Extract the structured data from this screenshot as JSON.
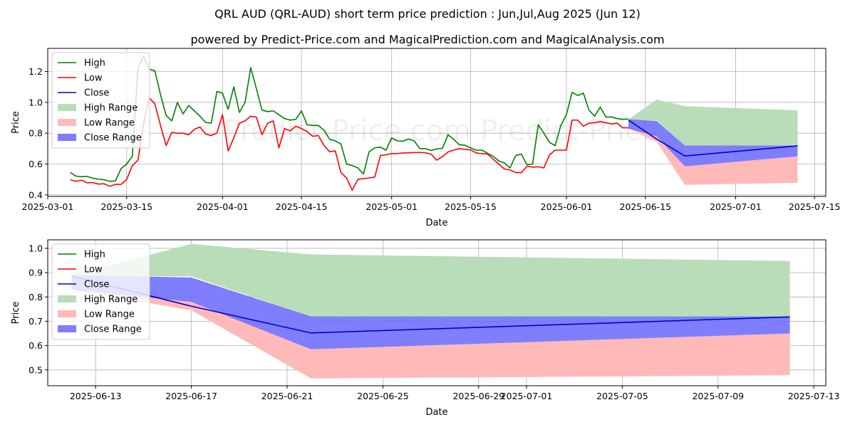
{
  "title": "QRL AUD (QRL-AUD) short term price prediction : Jun,Jul,Aug 2025 (Jun 12)",
  "subtitle": "powered by Predict-Price.com and MagicalPrediction.com and MagicalAnalysis.com",
  "watermark": "Predict-Price.com",
  "colors": {
    "high": "#008000",
    "low": "#ff0000",
    "close": "#0000cc",
    "high_range": "#b9dcb9",
    "low_range": "#ffb9b9",
    "close_range": "#7070ff"
  },
  "legend": [
    "High",
    "Low",
    "Close",
    "High Range",
    "Low Range",
    "Close Range"
  ],
  "chart_data": [
    {
      "type": "line",
      "name": "history-and-forecast",
      "xlabel": "Date",
      "ylabel": "Price",
      "xlim": [
        "2025-03-01",
        "2025-07-17"
      ],
      "ylim": [
        0.39,
        1.35
      ],
      "xticks": [
        "2025-03-01",
        "2025-03-15",
        "2025-04-01",
        "2025-04-15",
        "2025-05-01",
        "2025-05-15",
        "2025-06-01",
        "2025-06-15",
        "2025-07-01",
        "2025-07-15"
      ],
      "yticks": [
        0.4,
        0.6,
        0.8,
        1.0,
        1.2
      ],
      "grid": true,
      "legend_position": "top-left",
      "series": [
        {
          "name": "High",
          "x": [
            "2025-03-05",
            "2025-03-06",
            "2025-03-07",
            "2025-03-08",
            "2025-03-09",
            "2025-03-10",
            "2025-03-11",
            "2025-03-12",
            "2025-03-13",
            "2025-03-14",
            "2025-03-15",
            "2025-03-16",
            "2025-03-17",
            "2025-03-18",
            "2025-03-19",
            "2025-03-20",
            "2025-03-21",
            "2025-03-22",
            "2025-03-23",
            "2025-03-24",
            "2025-03-25",
            "2025-03-26",
            "2025-03-27",
            "2025-03-28",
            "2025-03-29",
            "2025-03-30",
            "2025-03-31",
            "2025-04-01",
            "2025-04-02",
            "2025-04-03",
            "2025-04-04",
            "2025-04-05",
            "2025-04-06",
            "2025-04-07",
            "2025-04-08",
            "2025-04-09",
            "2025-04-10",
            "2025-04-11",
            "2025-04-12",
            "2025-04-13",
            "2025-04-14",
            "2025-04-15",
            "2025-04-16",
            "2025-04-17",
            "2025-04-18",
            "2025-04-19",
            "2025-04-20",
            "2025-04-21",
            "2025-04-22",
            "2025-04-23",
            "2025-04-24",
            "2025-04-25",
            "2025-04-26",
            "2025-04-27",
            "2025-04-28",
            "2025-04-29",
            "2025-04-30",
            "2025-05-01",
            "2025-05-02",
            "2025-05-03",
            "2025-05-04",
            "2025-05-05",
            "2025-05-06",
            "2025-05-07",
            "2025-05-08",
            "2025-05-09",
            "2025-05-10",
            "2025-05-11",
            "2025-05-12",
            "2025-05-13",
            "2025-05-14",
            "2025-05-15",
            "2025-05-16",
            "2025-05-17",
            "2025-05-18",
            "2025-05-19",
            "2025-05-20",
            "2025-05-21",
            "2025-05-22",
            "2025-05-23",
            "2025-05-24",
            "2025-05-25",
            "2025-05-26",
            "2025-05-27",
            "2025-05-28",
            "2025-05-29",
            "2025-05-30",
            "2025-05-31",
            "2025-06-01",
            "2025-06-02",
            "2025-06-03",
            "2025-06-04",
            "2025-06-05",
            "2025-06-06",
            "2025-06-07",
            "2025-06-08",
            "2025-06-09",
            "2025-06-10",
            "2025-06-11",
            "2025-06-12"
          ],
          "values": [
            0.545,
            0.522,
            0.518,
            0.52,
            0.508,
            0.502,
            0.498,
            0.488,
            0.49,
            0.57,
            0.6,
            0.65,
            1.22,
            1.3,
            1.215,
            1.205,
            1.05,
            0.915,
            0.88,
            1.0,
            0.925,
            0.98,
            0.945,
            0.91,
            0.87,
            0.865,
            1.07,
            1.06,
            0.955,
            1.1,
            0.935,
            1.0,
            1.225,
            1.09,
            0.95,
            0.94,
            0.945,
            0.92,
            0.895,
            0.885,
            0.89,
            0.945,
            0.855,
            0.85,
            0.85,
            0.82,
            0.76,
            0.75,
            0.73,
            0.6,
            0.59,
            0.575,
            0.535,
            0.68,
            0.705,
            0.71,
            0.69,
            0.77,
            0.75,
            0.748,
            0.762,
            0.75,
            0.7,
            0.7,
            0.688,
            0.698,
            0.702,
            0.79,
            0.76,
            0.725,
            0.722,
            0.705,
            0.69,
            0.69,
            0.67,
            0.65,
            0.62,
            0.607,
            0.575,
            0.655,
            0.665,
            0.595,
            0.6,
            0.855,
            0.8,
            0.74,
            0.72,
            0.85,
            0.92,
            1.065,
            1.045,
            1.06,
            0.95,
            0.91,
            0.97,
            0.905,
            0.905,
            0.895,
            0.89,
            0.892
          ]
        },
        {
          "name": "Low",
          "x": [
            "2025-03-05",
            "2025-03-06",
            "2025-03-07",
            "2025-03-08",
            "2025-03-09",
            "2025-03-10",
            "2025-03-11",
            "2025-03-12",
            "2025-03-13",
            "2025-03-14",
            "2025-03-15",
            "2025-03-16",
            "2025-03-17",
            "2025-03-18",
            "2025-03-19",
            "2025-03-20",
            "2025-03-21",
            "2025-03-22",
            "2025-03-23",
            "2025-03-24",
            "2025-03-25",
            "2025-03-26",
            "2025-03-27",
            "2025-03-28",
            "2025-03-29",
            "2025-03-30",
            "2025-03-31",
            "2025-04-01",
            "2025-04-02",
            "2025-04-03",
            "2025-04-04",
            "2025-04-05",
            "2025-04-06",
            "2025-04-07",
            "2025-04-08",
            "2025-04-09",
            "2025-04-10",
            "2025-04-11",
            "2025-04-12",
            "2025-04-13",
            "2025-04-14",
            "2025-04-15",
            "2025-04-16",
            "2025-04-17",
            "2025-04-18",
            "2025-04-19",
            "2025-04-20",
            "2025-04-21",
            "2025-04-22",
            "2025-04-23",
            "2025-04-24",
            "2025-04-25",
            "2025-04-26",
            "2025-04-27",
            "2025-04-28",
            "2025-04-29",
            "2025-04-30",
            "2025-05-01",
            "2025-05-02",
            "2025-05-03",
            "2025-05-04",
            "2025-05-05",
            "2025-05-06",
            "2025-05-07",
            "2025-05-08",
            "2025-05-09",
            "2025-05-10",
            "2025-05-11",
            "2025-05-12",
            "2025-05-13",
            "2025-05-14",
            "2025-05-15",
            "2025-05-16",
            "2025-05-17",
            "2025-05-18",
            "2025-05-19",
            "2025-05-20",
            "2025-05-21",
            "2025-05-22",
            "2025-05-23",
            "2025-05-24",
            "2025-05-25",
            "2025-05-26",
            "2025-05-27",
            "2025-05-28",
            "2025-05-29",
            "2025-05-30",
            "2025-05-31",
            "2025-06-01",
            "2025-06-02",
            "2025-06-03",
            "2025-06-04",
            "2025-06-05",
            "2025-06-06",
            "2025-06-07",
            "2025-06-08",
            "2025-06-09",
            "2025-06-10",
            "2025-06-11",
            "2025-06-12"
          ],
          "values": [
            0.498,
            0.488,
            0.495,
            0.478,
            0.48,
            0.47,
            0.472,
            0.456,
            0.468,
            0.468,
            0.5,
            0.59,
            0.625,
            0.86,
            1.03,
            0.99,
            0.85,
            0.72,
            0.805,
            0.8,
            0.8,
            0.79,
            0.825,
            0.84,
            0.795,
            0.785,
            0.8,
            0.92,
            0.685,
            0.77,
            0.865,
            0.88,
            0.91,
            0.905,
            0.79,
            0.865,
            0.88,
            0.705,
            0.83,
            0.815,
            0.845,
            0.83,
            0.81,
            0.78,
            0.785,
            0.72,
            0.68,
            0.685,
            0.545,
            0.51,
            0.43,
            0.5,
            0.505,
            0.51,
            0.515,
            0.655,
            0.66,
            0.668,
            0.668,
            0.672,
            0.673,
            0.675,
            0.675,
            0.673,
            0.664,
            0.625,
            0.648,
            0.678,
            0.69,
            0.7,
            0.695,
            0.692,
            0.672,
            0.667,
            0.665,
            0.632,
            0.6,
            0.568,
            0.562,
            0.545,
            0.545,
            0.585,
            0.58,
            0.582,
            0.575,
            0.66,
            0.69,
            0.69,
            0.69,
            0.885,
            0.885,
            0.845,
            0.865,
            0.868,
            0.875,
            0.868,
            0.86,
            0.865,
            0.835,
            0.835
          ]
        },
        {
          "name": "Close",
          "x": [
            "2025-06-12",
            "2025-06-17",
            "2025-06-22",
            "2025-07-12"
          ],
          "values": [
            0.885,
            0.762,
            0.652,
            0.718
          ]
        }
      ],
      "ranges": [
        {
          "name": "High Range",
          "x": [
            "2025-06-12",
            "2025-06-17",
            "2025-06-22",
            "2025-07-12"
          ],
          "upper": [
            0.89,
            1.018,
            0.975,
            0.948
          ],
          "lower": [
            0.885,
            0.885,
            0.72,
            0.72
          ]
        },
        {
          "name": "Low Range",
          "x": [
            "2025-06-12",
            "2025-06-17",
            "2025-06-22",
            "2025-07-12"
          ],
          "upper": [
            0.845,
            0.785,
            0.585,
            0.65
          ],
          "lower": [
            0.83,
            0.745,
            0.465,
            0.478
          ]
        },
        {
          "name": "Close Range",
          "x": [
            "2025-06-12",
            "2025-06-17",
            "2025-06-22",
            "2025-07-12"
          ],
          "upper": [
            0.89,
            0.88,
            0.72,
            0.72
          ],
          "lower": [
            0.83,
            0.78,
            0.585,
            0.65
          ]
        }
      ]
    },
    {
      "type": "line",
      "name": "forecast-zoom",
      "xlabel": "Date",
      "ylabel": "Price",
      "xlim": [
        "2025-06-11",
        "2025-07-13.5"
      ],
      "ylim": [
        0.435,
        1.035
      ],
      "xticks": [
        "2025-06-13",
        "2025-06-17",
        "2025-06-21",
        "2025-06-25",
        "2025-06-29",
        "2025-07-01",
        "2025-07-05",
        "2025-07-09",
        "2025-07-13"
      ],
      "yticks": [
        0.5,
        0.6,
        0.7,
        0.8,
        0.9,
        1.0
      ],
      "grid": true,
      "legend_position": "top-left",
      "series": [
        {
          "name": "Close",
          "x": [
            "2025-06-12",
            "2025-06-17",
            "2025-06-22",
            "2025-07-12"
          ],
          "values": [
            0.885,
            0.762,
            0.652,
            0.718
          ]
        }
      ],
      "ranges": [
        {
          "name": "High Range",
          "x": [
            "2025-06-12",
            "2025-06-17",
            "2025-06-22",
            "2025-07-12"
          ],
          "upper": [
            0.89,
            1.018,
            0.975,
            0.948
          ],
          "lower": [
            0.885,
            0.885,
            0.72,
            0.72
          ]
        },
        {
          "name": "Low Range",
          "x": [
            "2025-06-12",
            "2025-06-17",
            "2025-06-22",
            "2025-07-12"
          ],
          "upper": [
            0.845,
            0.785,
            0.585,
            0.65
          ],
          "lower": [
            0.83,
            0.745,
            0.465,
            0.478
          ]
        },
        {
          "name": "Close Range",
          "x": [
            "2025-06-12",
            "2025-06-17",
            "2025-06-22",
            "2025-07-12"
          ],
          "upper": [
            0.89,
            0.88,
            0.72,
            0.72
          ],
          "lower": [
            0.83,
            0.78,
            0.585,
            0.65
          ]
        }
      ]
    }
  ]
}
